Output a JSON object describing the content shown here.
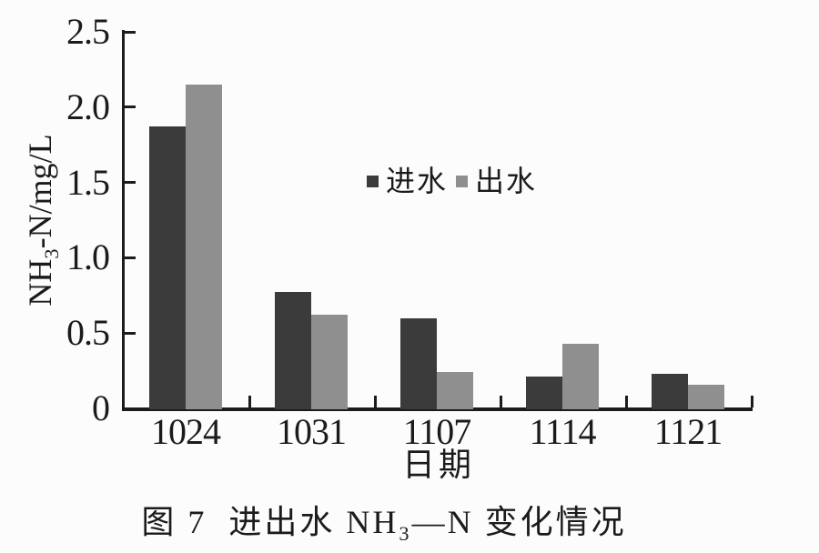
{
  "figure": {
    "caption": {
      "prefix": "图 7",
      "body_before_sub": "进出水 NH",
      "sub": "3",
      "body_after_sub": "—N 变化情况"
    }
  },
  "chart_data": {
    "type": "bar",
    "title": "图7 进出水NH3—N变化情况",
    "categories": [
      "1024",
      "1031",
      "1107",
      "1114",
      "1121"
    ],
    "series": [
      {
        "name": "进水",
        "key": "inflow",
        "color": "#3b3b3b",
        "values": [
          1.87,
          0.77,
          0.6,
          0.21,
          0.23
        ]
      },
      {
        "name": "出水",
        "key": "outflow",
        "color": "#8f8f8f",
        "values": [
          2.15,
          0.62,
          0.24,
          0.43,
          0.16
        ]
      }
    ],
    "xlabel": "日期",
    "ylabel": "NH3-N/mg/L",
    "ylabel_parts": {
      "prefix": "NH",
      "sub": "3",
      "suffix": "-N/mg/L"
    },
    "ylim": [
      0,
      2.5
    ],
    "yticks": [
      "0",
      "0.5",
      "1.0",
      "1.5",
      "2.0",
      "2.5"
    ],
    "grid": false,
    "legend_position": "inside-top-center"
  }
}
